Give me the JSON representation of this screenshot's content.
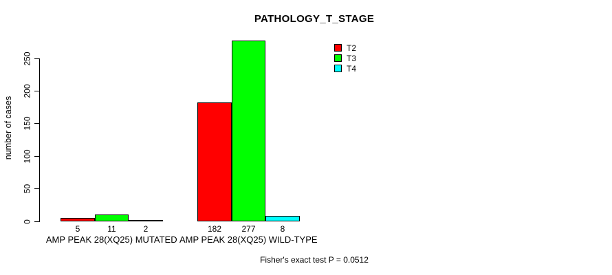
{
  "chart_data": {
    "type": "bar",
    "title": "PATHOLOGY_T_STAGE",
    "xlabel": "",
    "ylabel": "number of cases",
    "ylim": [
      0,
      250
    ],
    "yticks": [
      0,
      50,
      100,
      150,
      200,
      250
    ],
    "categories": [
      "AMP PEAK 28(XQ25) MUTATED",
      "AMP PEAK 28(XQ25) WILD-TYPE"
    ],
    "series": [
      {
        "name": "T2",
        "color": "#ff0000",
        "values": [
          5,
          182
        ]
      },
      {
        "name": "T3",
        "color": "#00ff00",
        "values": [
          11,
          277
        ]
      },
      {
        "name": "T4",
        "color": "#00ffff",
        "values": [
          2,
          8
        ]
      }
    ],
    "bar_value_labels": [
      [
        "5",
        "11",
        "2"
      ],
      [
        "182",
        "277",
        "8"
      ]
    ],
    "legend_position": "top-right",
    "grid": false,
    "annotation": "Fisher's exact test P = 0.0512"
  },
  "colors": {
    "background": "#ffffff",
    "axis": "#000000",
    "text": "#000000"
  }
}
